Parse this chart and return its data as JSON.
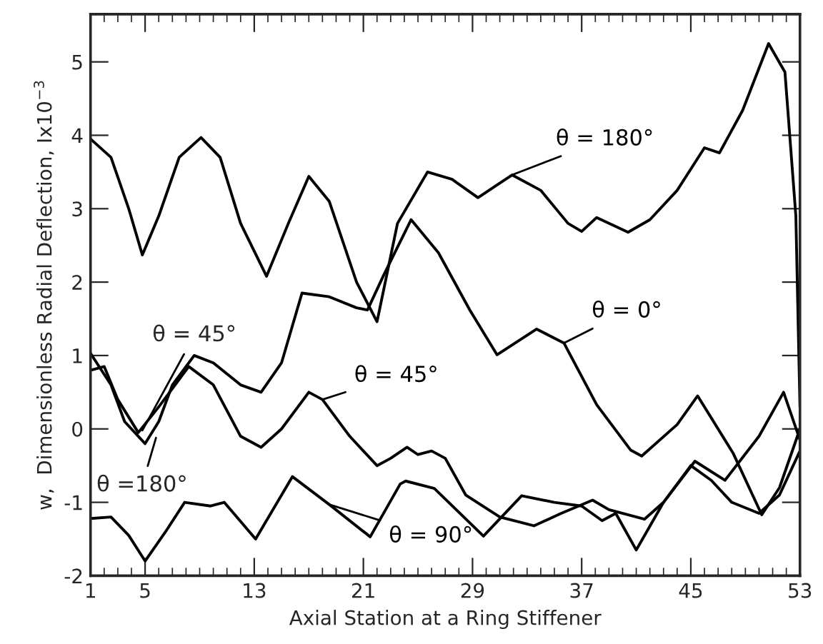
{
  "chart_data": {
    "type": "line",
    "xlabel": "Axial Station at a Ring Stiffener",
    "ylabel": "w,  Dimensionless Radial Deflection, Ix10$^{−3}$",
    "xlim": [
      1,
      53
    ],
    "ylim": [
      -2,
      5.65
    ],
    "xticks": [
      1,
      5,
      13,
      21,
      29,
      37,
      45,
      53
    ],
    "yticks": [
      -2,
      -1,
      0,
      1,
      2,
      3,
      4,
      5
    ],
    "grid": false,
    "legend": false,
    "marker": "none",
    "line_style": "solid",
    "series": [
      {
        "name": "θ = 180°",
        "color": "#000000",
        "x": [
          1,
          2.5,
          3.8,
          4.8,
          6,
          7.5,
          9.1,
          10.5,
          12,
          13.9,
          15.5,
          17,
          18.5,
          20.5,
          22,
          23.5,
          25.7,
          27.5,
          29.4,
          31.9,
          34,
          36,
          37,
          38.1,
          40.4,
          42,
          44,
          46,
          47.1,
          48.8,
          50.7,
          51.9,
          52.7,
          53
        ],
        "values": [
          3.95,
          3.7,
          3.0,
          2.37,
          2.9,
          3.7,
          3.97,
          3.7,
          2.8,
          2.08,
          2.8,
          3.44,
          3.1,
          2.0,
          1.46,
          2.8,
          3.5,
          3.4,
          3.15,
          3.46,
          3.25,
          2.8,
          2.69,
          2.88,
          2.68,
          2.85,
          3.25,
          3.83,
          3.76,
          4.34,
          5.25,
          4.86,
          2.9,
          0.3
        ]
      },
      {
        "name": "θ = 0°",
        "color": "#000000",
        "x": [
          1,
          2.5,
          3.5,
          5,
          6,
          7,
          8.6,
          10,
          12,
          13.5,
          15,
          16.5,
          18.5,
          20.5,
          21.3,
          22.5,
          24.5,
          26.5,
          28.8,
          30.8,
          33.7,
          35.7,
          38.1,
          40.6,
          41.4,
          44,
          45.5,
          48.1,
          50.2,
          51.5,
          53
        ],
        "values": [
          1.03,
          0.6,
          0.1,
          -0.2,
          0.1,
          0.6,
          1.0,
          0.9,
          0.6,
          0.5,
          0.9,
          1.85,
          1.8,
          1.65,
          1.62,
          2.1,
          2.85,
          2.4,
          1.62,
          1.01,
          1.36,
          1.17,
          0.33,
          -0.29,
          -0.37,
          0.06,
          0.45,
          -0.33,
          -1.17,
          -0.8,
          0.0
        ]
      },
      {
        "name": "θ = 45°",
        "color": "#000000",
        "x": [
          1,
          2,
          3,
          4.5,
          6,
          8.2,
          10,
          12,
          13.5,
          15,
          17,
          18,
          20,
          22,
          23,
          24.2,
          25,
          26,
          27,
          28.5,
          31,
          33.5,
          35.5,
          37.8,
          39,
          41.6,
          43,
          45.3,
          47.5,
          50,
          51.8,
          53
        ],
        "values": [
          0.8,
          0.85,
          0.4,
          -0.05,
          0.3,
          0.85,
          0.6,
          -0.1,
          -0.25,
          0.0,
          0.5,
          0.4,
          -0.1,
          -0.5,
          -0.4,
          -0.25,
          -0.35,
          -0.3,
          -0.4,
          -0.9,
          -1.2,
          -1.32,
          -1.15,
          -0.97,
          -1.1,
          -1.23,
          -1.0,
          -0.44,
          -0.7,
          -0.1,
          0.5,
          -0.15
        ]
      },
      {
        "name": "θ = 90°",
        "color": "#000000",
        "x": [
          1,
          2.5,
          3.8,
          5,
          6.5,
          7.9,
          9.8,
          10.8,
          13.1,
          15.8,
          18.5,
          21.5,
          23.7,
          24.1,
          26.2,
          29.8,
          32.6,
          35,
          37,
          38.5,
          39.5,
          41,
          43,
          45,
          46.5,
          48,
          50,
          51.5,
          53
        ],
        "values": [
          -1.22,
          -1.2,
          -1.45,
          -1.8,
          -1.4,
          -1.0,
          -1.05,
          -1.0,
          -1.5,
          -0.65,
          -1.03,
          -1.47,
          -0.75,
          -0.71,
          -0.81,
          -1.46,
          -0.91,
          -1.0,
          -1.05,
          -1.25,
          -1.15,
          -1.65,
          -1.0,
          -0.5,
          -0.7,
          -1.0,
          -1.15,
          -0.9,
          -0.3
        ]
      }
    ],
    "annotations": [
      {
        "text": "θ = 45°",
        "x": 4.8,
        "y": -0.02
      },
      {
        "text": "θ =180°",
        "x": 5.8,
        "y": -0.12
      }
    ]
  }
}
